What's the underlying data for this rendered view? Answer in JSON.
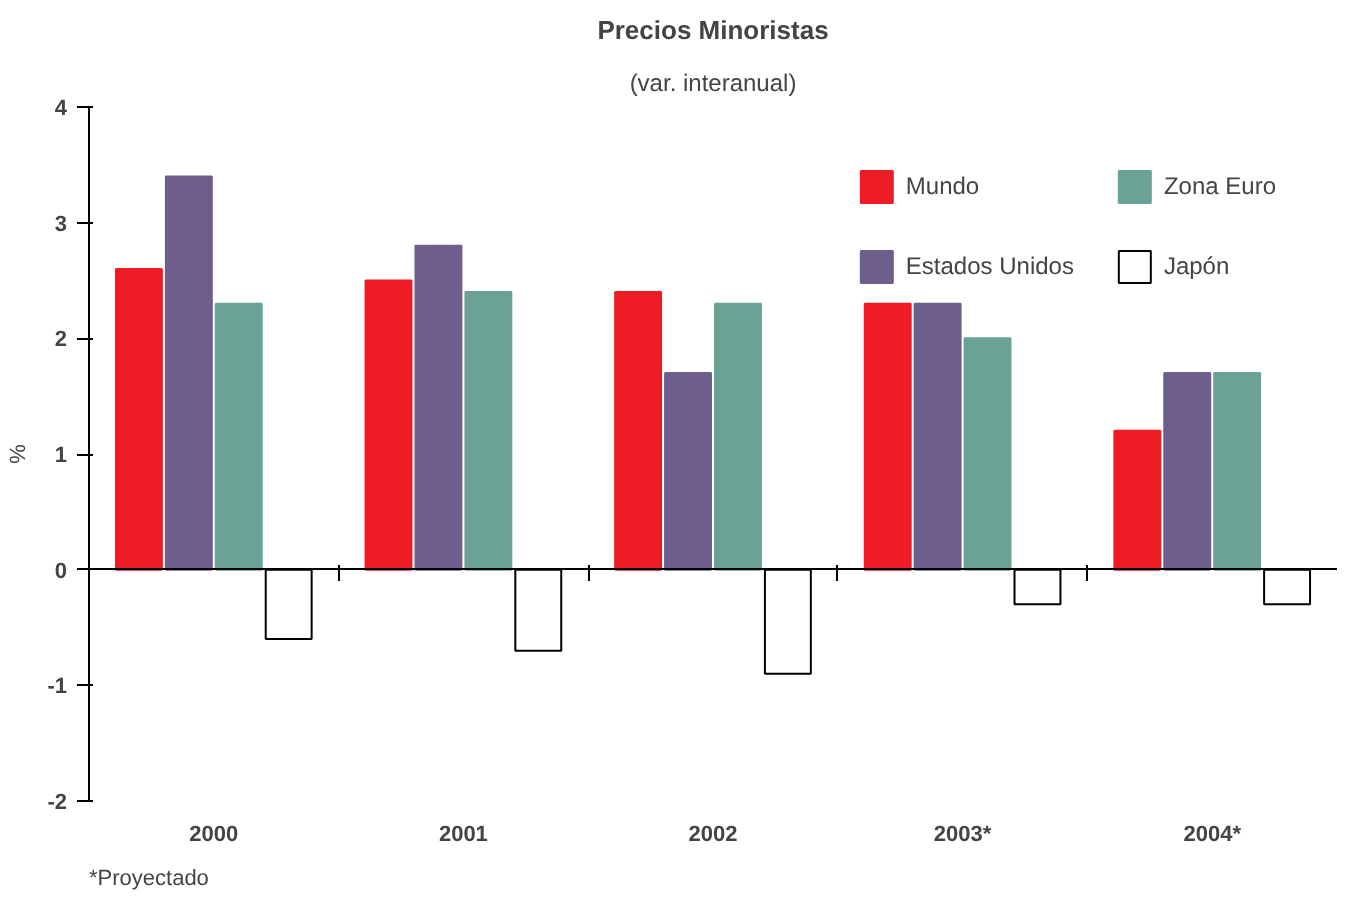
{
  "chart_data": {
    "type": "bar",
    "title": "Precios Minoristas",
    "subtitle": "(var. interanual)",
    "ylabel": "%",
    "categories": [
      "2000",
      "2001",
      "2002",
      "2003*",
      "2004*"
    ],
    "series": [
      {
        "name": "Mundo",
        "color": "#ee1c25",
        "values": [
          2.6,
          2.5,
          2.4,
          2.3,
          1.2
        ]
      },
      {
        "name": "Estados Unidos",
        "color": "#6e5e8e",
        "values": [
          3.4,
          2.8,
          1.7,
          2.3,
          1.7
        ]
      },
      {
        "name": "Zona Euro",
        "color": "#6aa396",
        "values": [
          2.3,
          2.4,
          2.3,
          2.0,
          1.7
        ]
      },
      {
        "name": "Japón",
        "color": "#ffffff",
        "values": [
          -0.6,
          -0.7,
          -0.9,
          -0.3,
          -0.3
        ]
      }
    ],
    "ylim": [
      -2,
      4
    ],
    "yticks": [
      -2,
      -1,
      0,
      1,
      2,
      3,
      4
    ],
    "legend": "top right",
    "annotations": [
      "*Proyectado"
    ]
  }
}
